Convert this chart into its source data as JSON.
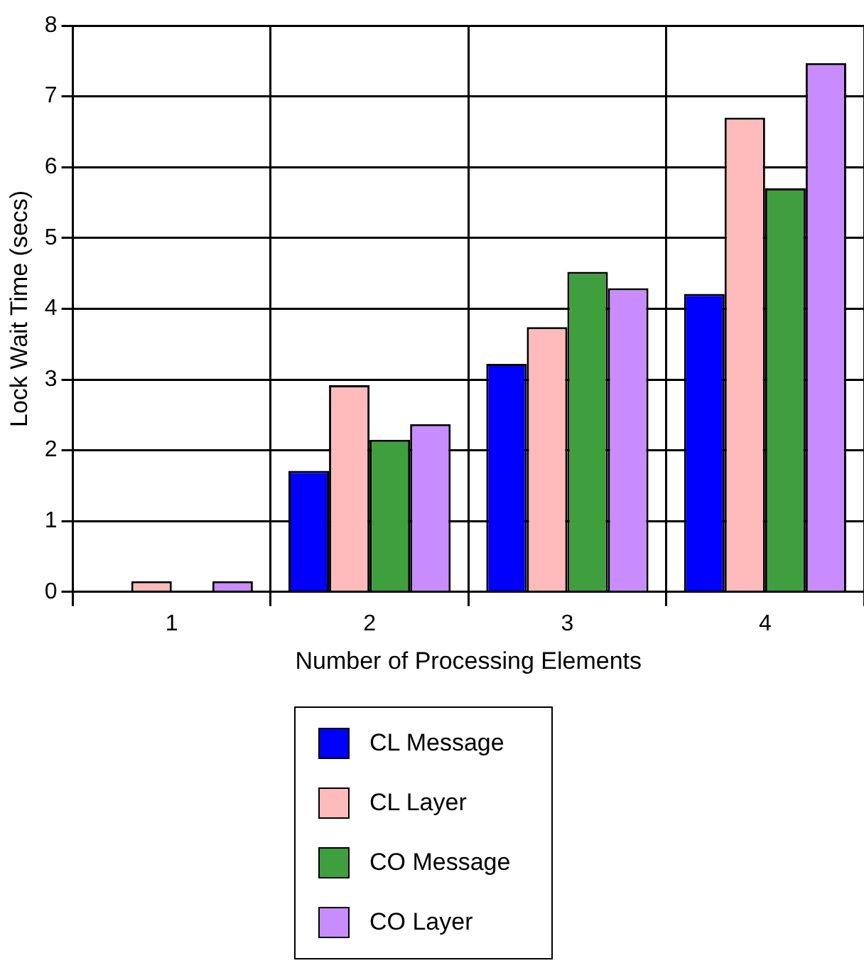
{
  "chart_data": {
    "type": "bar",
    "xlabel": "Number of Processing Elements",
    "ylabel": "Lock Wait Time (secs)",
    "categories": [
      "1",
      "2",
      "3",
      "4"
    ],
    "series": [
      {
        "name": "CL Message",
        "color": "#0000ff",
        "values": [
          null,
          1.71,
          3.22,
          4.21
        ]
      },
      {
        "name": "CL Layer",
        "color": "#ffbbbb",
        "values": [
          0.15,
          2.92,
          3.74,
          6.7
        ]
      },
      {
        "name": "CO Message",
        "color": "#3f9f3f",
        "values": [
          null,
          2.15,
          4.52,
          5.7
        ]
      },
      {
        "name": "CO Layer",
        "color": "#c98cff",
        "values": [
          0.15,
          2.37,
          4.29,
          7.47
        ]
      }
    ],
    "ylim": [
      0,
      8
    ],
    "yticks": [
      0,
      1,
      2,
      3,
      4,
      5,
      6,
      7,
      8
    ],
    "grid": true,
    "legend": "bottom"
  }
}
